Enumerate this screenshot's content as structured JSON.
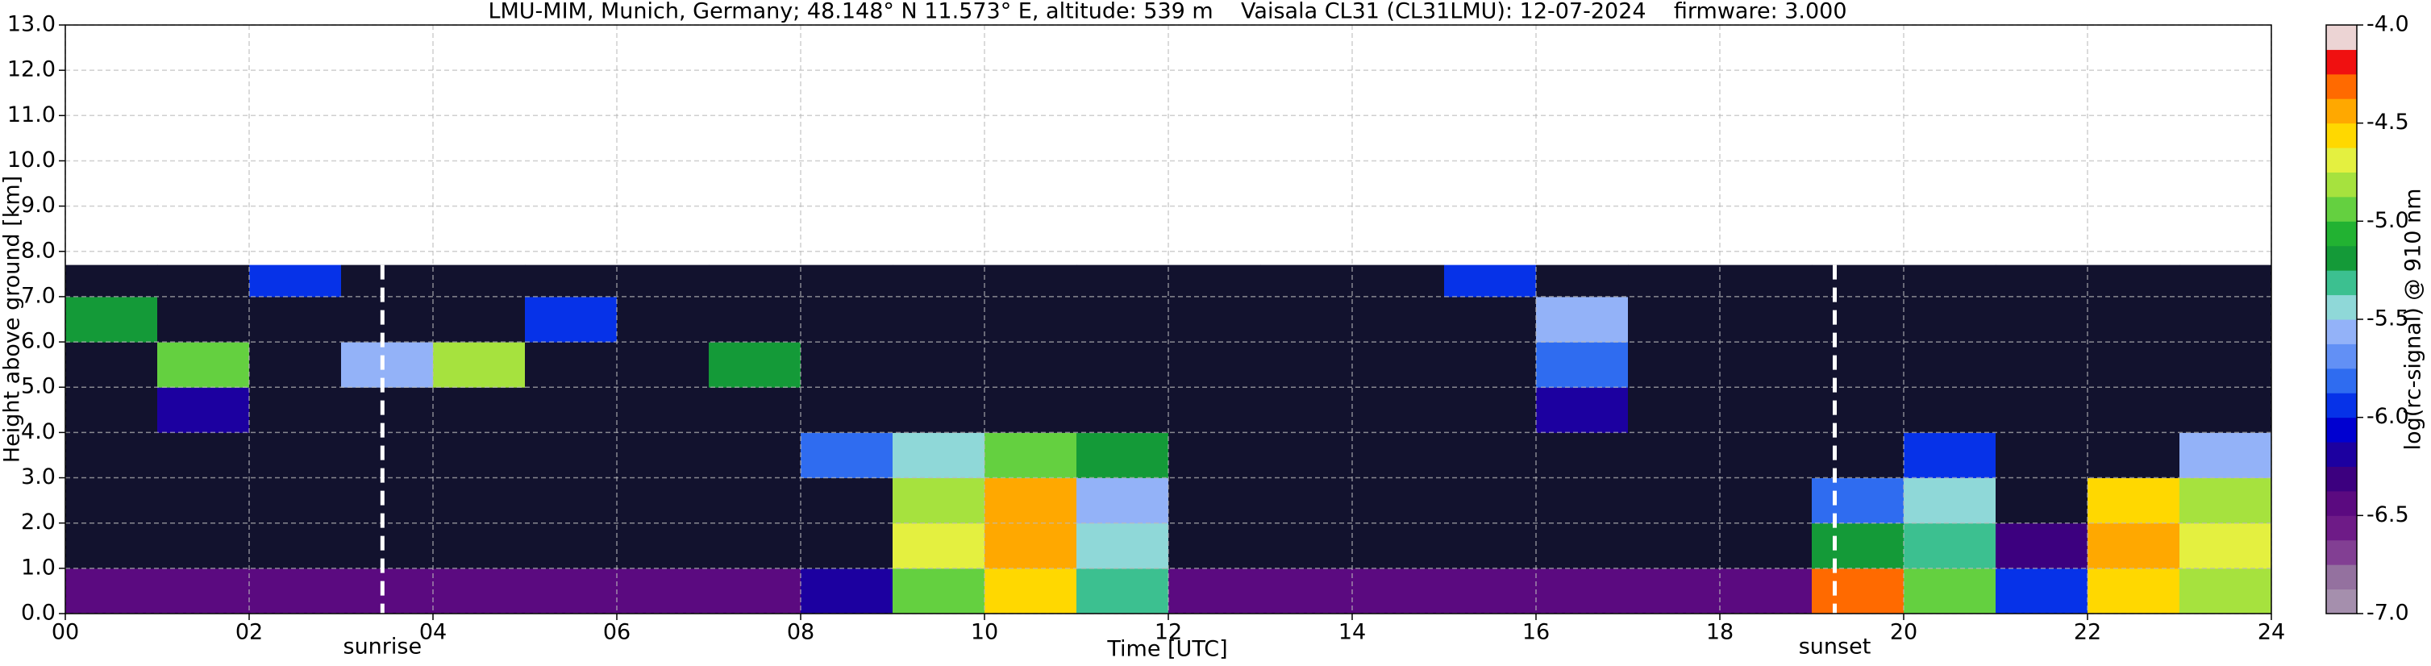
{
  "chart_data": {
    "type": "heatmap",
    "title": "LMU-MIM, Munich, Germany; 48.148° N 11.573° E, altitude: 539 m    Vaisala CL31 (CL31LMU): 12-07-2024    firmware: 3.000",
    "x_label": "Time [UTC]",
    "y_label": "Height above ground [km]",
    "colorbar_label": "log(rc-signal) @ 910 nm",
    "xlim": [
      0,
      24
    ],
    "xticks": [
      {
        "value": 0,
        "label": "00"
      },
      {
        "value": 2,
        "label": "02"
      },
      {
        "value": 4,
        "label": "04"
      },
      {
        "value": 6,
        "label": "06"
      },
      {
        "value": 8,
        "label": "08"
      },
      {
        "value": 10,
        "label": "10"
      },
      {
        "value": 12,
        "label": "12"
      },
      {
        "value": 14,
        "label": "14"
      },
      {
        "value": 16,
        "label": "16"
      },
      {
        "value": 18,
        "label": "18"
      },
      {
        "value": 20,
        "label": "20"
      },
      {
        "value": 22,
        "label": "22"
      },
      {
        "value": 24,
        "label": "24"
      }
    ],
    "ylim": [
      0,
      13
    ],
    "yticks": [
      {
        "value": 0,
        "label": "0.0"
      },
      {
        "value": 1,
        "label": "1.0"
      },
      {
        "value": 2,
        "label": "2.0"
      },
      {
        "value": 3,
        "label": "3.0"
      },
      {
        "value": 4,
        "label": "4.0"
      },
      {
        "value": 5,
        "label": "5.0"
      },
      {
        "value": 6,
        "label": "6.0"
      },
      {
        "value": 7,
        "label": "7.0"
      },
      {
        "value": 8,
        "label": "8.0"
      },
      {
        "value": 9,
        "label": "9.0"
      },
      {
        "value": 10,
        "label": "10.0"
      },
      {
        "value": 11,
        "label": "11.0"
      },
      {
        "value": 12,
        "label": "12.0"
      },
      {
        "value": 13,
        "label": "13.0"
      }
    ],
    "grid": true,
    "xbins": [
      0,
      1,
      2,
      3,
      4,
      5,
      6,
      7,
      8,
      9,
      10,
      11,
      12,
      13,
      14,
      15,
      16,
      17,
      18,
      19,
      20,
      21,
      22,
      23,
      24
    ],
    "ybins": [
      0,
      1,
      2,
      3,
      4,
      5,
      6,
      7,
      7.7
    ],
    "z": [
      [
        -6.4,
        -6.4,
        -6.4,
        -6.4,
        -6.5,
        -6.5,
        -6.4,
        -6.4,
        -6.2,
        -5.0,
        -4.6,
        -5.3,
        -6.4,
        -6.4,
        -6.4,
        -6.4,
        -6.4,
        -6.4,
        -6.4,
        -4.3,
        -5.0,
        -6.0,
        -4.6,
        -4.8
      ],
      [
        -7.5,
        -7.5,
        -7.5,
        -7.5,
        -7.5,
        -7.5,
        -7.5,
        -7.5,
        -7.5,
        -4.7,
        -4.4,
        -5.4,
        -7.5,
        -7.5,
        -7.5,
        -7.5,
        -7.5,
        -7.5,
        -7.5,
        -5.2,
        -5.3,
        -6.3,
        -4.5,
        -4.7
      ],
      [
        -7.5,
        -7.5,
        -7.5,
        -7.5,
        -7.5,
        -7.5,
        -7.5,
        -7.5,
        -7.5,
        -4.8,
        -4.5,
        -5.6,
        -7.5,
        -7.5,
        -7.5,
        -7.5,
        -7.5,
        -7.5,
        -7.5,
        -5.8,
        -5.4,
        -7.5,
        -4.6,
        -4.8
      ],
      [
        -7.5,
        -7.5,
        -7.5,
        -7.5,
        -7.5,
        -7.5,
        -7.5,
        -7.5,
        -5.8,
        -5.5,
        -5.0,
        -5.2,
        -7.5,
        -7.5,
        -7.5,
        -7.5,
        -7.5,
        -7.5,
        -7.5,
        -7.5,
        -6.0,
        -7.5,
        -7.5,
        -5.6
      ],
      [
        -7.5,
        -6.2,
        -7.5,
        -7.5,
        -7.5,
        -7.5,
        -7.5,
        -7.5,
        -7.5,
        -7.5,
        -7.5,
        -7.5,
        -7.5,
        -7.5,
        -7.5,
        -7.5,
        -6.2,
        -7.5,
        -7.5,
        -7.5,
        -7.5,
        -7.5,
        -7.5,
        -7.5
      ],
      [
        -7.5,
        -5.0,
        -7.5,
        -5.6,
        -4.8,
        -7.5,
        -7.5,
        -5.2,
        -7.5,
        -7.5,
        -7.5,
        -7.5,
        -7.5,
        -7.5,
        -7.5,
        -7.5,
        -5.8,
        -7.5,
        -7.5,
        -7.5,
        -7.5,
        -7.5,
        -7.5,
        -7.5
      ],
      [
        -5.2,
        -7.5,
        -7.5,
        -7.5,
        -7.5,
        -6.0,
        -7.5,
        -7.5,
        -7.5,
        -7.5,
        -7.5,
        -7.5,
        -7.5,
        -7.5,
        -7.5,
        -7.5,
        -5.6,
        -7.5,
        -7.5,
        -7.5,
        -7.5,
        -7.5,
        -7.5,
        -7.5
      ],
      [
        -7.5,
        -7.5,
        -6.0,
        -7.5,
        -7.5,
        -7.5,
        -7.5,
        -7.5,
        -7.5,
        -7.5,
        -7.5,
        -7.5,
        -7.5,
        -7.5,
        -7.5,
        -6.0,
        -7.5,
        -7.5,
        -7.5,
        -7.5,
        -7.5,
        -7.5,
        -7.5,
        -7.5
      ]
    ],
    "colorbar": {
      "lim": [
        -7,
        -4
      ],
      "ticks": [
        {
          "value": -4,
          "label": "-4.0"
        },
        {
          "value": -4.5,
          "label": "-4.5"
        },
        {
          "value": -5,
          "label": "-5.0"
        },
        {
          "value": -5.5,
          "label": "-5.5"
        },
        {
          "value": -6,
          "label": "-6.0"
        },
        {
          "value": -6.5,
          "label": "-6.5"
        },
        {
          "value": -7,
          "label": "-7.0"
        }
      ],
      "colors": [
        "#a58fad",
        "#94719f",
        "#823f93",
        "#6e1b87",
        "#5b0a80",
        "#3c007f",
        "#1c00a0",
        "#0000d0",
        "#0632e8",
        "#2f6cf0",
        "#6290f5",
        "#93b2f8",
        "#8fd8d8",
        "#3cc090",
        "#149a38",
        "#22b232",
        "#64d040",
        "#a6e23e",
        "#e4f040",
        "#ffd800",
        "#ffa800",
        "#ff6a00",
        "#f01010",
        "#ecd4d4"
      ],
      "under_color": "#12122e"
    },
    "annotations": [
      {
        "text": "sunrise",
        "x": 3.45
      },
      {
        "text": "sunset",
        "x": 19.25
      }
    ]
  }
}
